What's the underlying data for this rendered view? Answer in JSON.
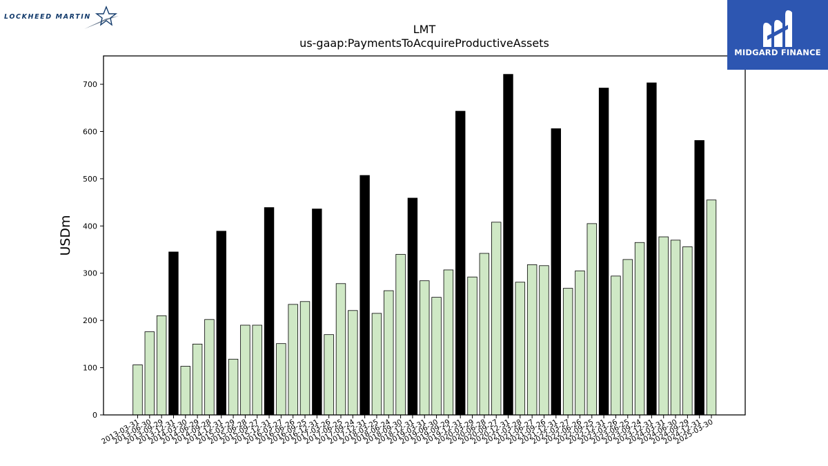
{
  "logos": {
    "brand_left": "LOCKHEED MARTIN",
    "brand_right": "MIDGARD FINANCE",
    "brand_right_color": "#2d56b1"
  },
  "chart_data": {
    "type": "bar",
    "title": "LMT",
    "subtitle": "us-gaap:PaymentsToAcquireProductiveAssets",
    "xlabel": "",
    "ylabel": "USDm",
    "ylim": [
      0,
      760
    ],
    "yticks": [
      0,
      100,
      200,
      300,
      400,
      500,
      600,
      700
    ],
    "grid": false,
    "colors": {
      "quarter": "#cfe8c5",
      "fiscal_year_end": "#000000",
      "edge": "#000000"
    },
    "categories": [
      "2013-03-31",
      "2013-06-30",
      "2013-09-29",
      "2013-12-31",
      "2014-03-30",
      "2014-06-29",
      "2014-09-28",
      "2014-12-31",
      "2015-03-29",
      "2015-06-28",
      "2015-09-27",
      "2015-12-31",
      "2016-03-27",
      "2016-06-26",
      "2016-09-25",
      "2016-12-31",
      "2017-03-26",
      "2017-06-25",
      "2017-09-24",
      "2017-12-31",
      "2018-03-25",
      "2018-06-24",
      "2018-09-30",
      "2018-12-31",
      "2019-03-31",
      "2019-06-30",
      "2019-09-29",
      "2019-12-31",
      "2020-03-29",
      "2020-06-28",
      "2020-09-27",
      "2020-12-31",
      "2021-03-28",
      "2021-06-27",
      "2021-09-26",
      "2021-12-31",
      "2022-03-27",
      "2022-06-26",
      "2022-09-25",
      "2022-12-31",
      "2023-03-26",
      "2023-06-25",
      "2023-09-24",
      "2023-12-31",
      "2024-03-31",
      "2024-06-30",
      "2024-09-29",
      "2024-12-31",
      "2025-03-30"
    ],
    "values": [
      106,
      176,
      210,
      345,
      103,
      150,
      202,
      389,
      118,
      190,
      190,
      439,
      151,
      234,
      240,
      436,
      170,
      278,
      221,
      507,
      215,
      263,
      340,
      459,
      284,
      249,
      307,
      643,
      292,
      342,
      408,
      721,
      281,
      318,
      316,
      606,
      268,
      305,
      405,
      692,
      294,
      329,
      365,
      703,
      377,
      370,
      356,
      581,
      455
    ],
    "fiscal_year_end": [
      false,
      false,
      false,
      true,
      false,
      false,
      false,
      true,
      false,
      false,
      false,
      true,
      false,
      false,
      false,
      true,
      false,
      false,
      false,
      true,
      false,
      false,
      false,
      true,
      false,
      false,
      false,
      true,
      false,
      false,
      false,
      true,
      false,
      false,
      false,
      true,
      false,
      false,
      false,
      true,
      false,
      false,
      false,
      true,
      false,
      false,
      false,
      true,
      false
    ]
  }
}
